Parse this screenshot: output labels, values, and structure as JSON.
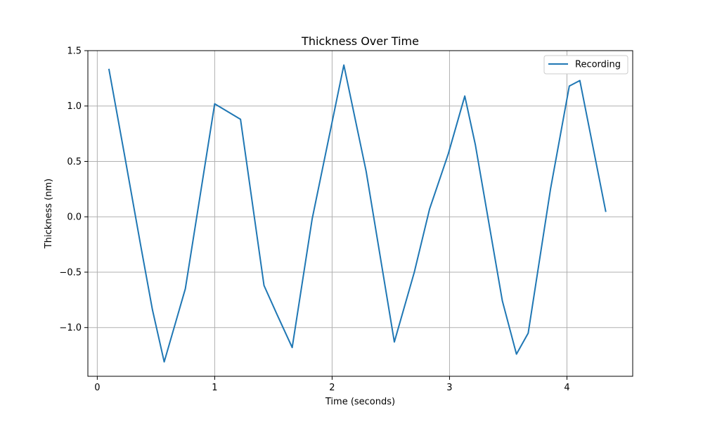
{
  "chart_data": {
    "type": "line",
    "title": "Thickness Over Time",
    "xlabel": "Time (seconds)",
    "ylabel": "Thickness (nm)",
    "xlim": [
      -0.08,
      4.56
    ],
    "ylim": [
      -1.44,
      1.5
    ],
    "xticks": [
      0,
      1,
      2,
      3,
      4
    ],
    "xtick_labels": [
      "0",
      "1",
      "2",
      "3",
      "4"
    ],
    "yticks": [
      -1.0,
      -0.5,
      0.0,
      0.5,
      1.0,
      1.5
    ],
    "ytick_labels": [
      "−1.0",
      "−0.5",
      "0.0",
      "0.5",
      "1.0",
      "1.5"
    ],
    "grid": true,
    "legend": "top-right",
    "series": [
      {
        "name": "Recording",
        "color": "#1f77b4",
        "x": [
          0.1,
          0.23,
          0.37,
          0.47,
          0.57,
          0.75,
          1.0,
          1.22,
          1.42,
          1.53,
          1.66,
          1.83,
          2.1,
          2.29,
          2.53,
          2.7,
          2.83,
          2.99,
          3.13,
          3.22,
          3.45,
          3.57,
          3.67,
          3.86,
          4.02,
          4.11,
          4.33
        ],
        "y": [
          1.33,
          0.57,
          -0.26,
          -0.84,
          -1.31,
          -0.65,
          1.02,
          0.88,
          -0.62,
          -0.88,
          -1.18,
          -0.02,
          1.37,
          0.41,
          -1.13,
          -0.5,
          0.07,
          0.57,
          1.09,
          0.65,
          -0.76,
          -1.24,
          -1.05,
          0.25,
          1.18,
          1.23,
          0.05
        ]
      }
    ]
  }
}
